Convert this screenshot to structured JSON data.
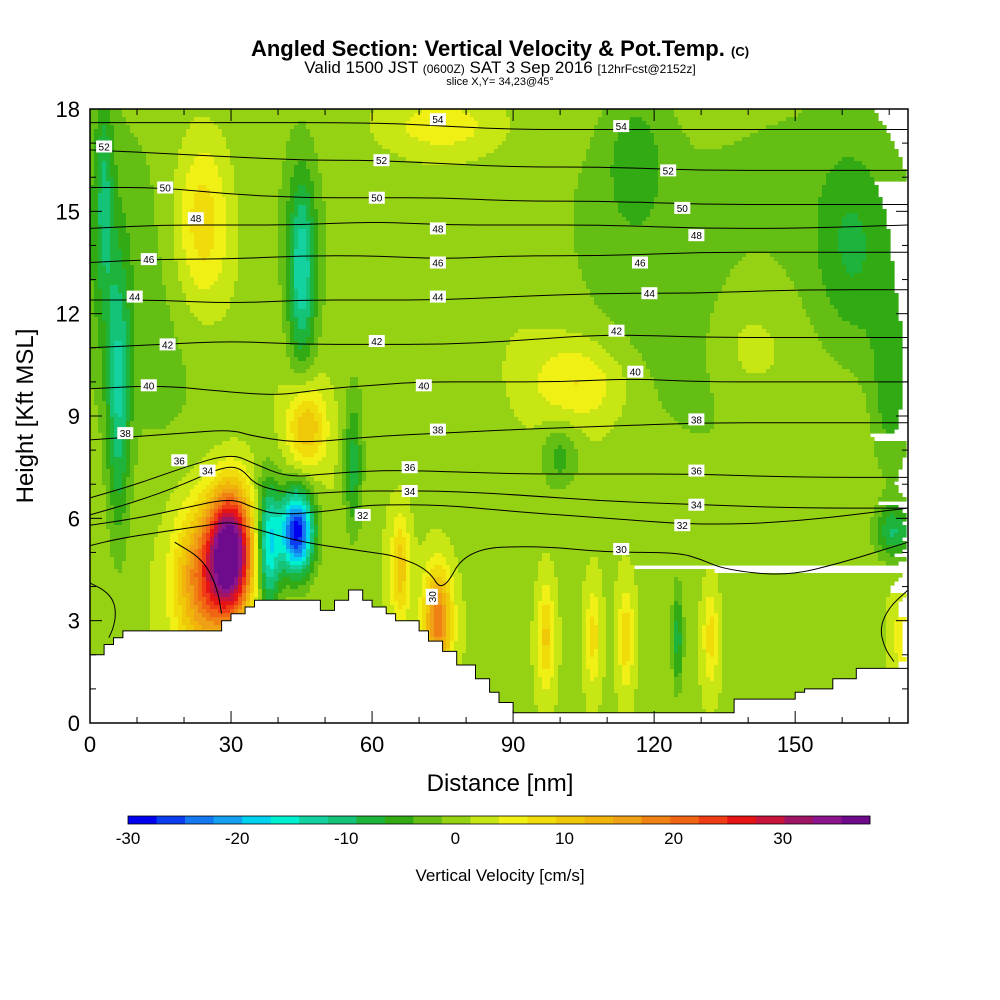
{
  "title": {
    "main": "Angled Section: Vertical Velocity & Pot.Temp.",
    "unit": "(C)",
    "valid_prefix": "Valid 1500 JST",
    "valid_utc": "(0600Z)",
    "valid_date": "SAT 3 Sep 2016",
    "forecast": "[12hrFcst@2152z]",
    "slice": "slice X,Y= 34,23@45°"
  },
  "chart_data": {
    "type": "heatmap",
    "xlabel": "Distance [nm]",
    "ylabel": "Height [Kft MSL]",
    "xlim": [
      0,
      174
    ],
    "ylim": [
      0,
      18
    ],
    "x_ticks": [
      "0",
      "30",
      "60",
      "90",
      "120",
      "150"
    ],
    "y_ticks": [
      "0",
      "3",
      "6",
      "9",
      "12",
      "15",
      "18"
    ],
    "colorbar": {
      "label": "Vertical Velocity [cm/s]",
      "ticks": [
        "-30",
        "-20",
        "-10",
        "0",
        "10",
        "20",
        "30"
      ],
      "range": [
        -30,
        38
      ],
      "colors": [
        "#0000f0",
        "#0a3cf0",
        "#1478f0",
        "#14a0f0",
        "#00d2f0",
        "#00f0d2",
        "#14d2a0",
        "#14c378",
        "#1eb43c",
        "#32aa14",
        "#64be14",
        "#96d214",
        "#c8e614",
        "#f0f014",
        "#f0dc0a",
        "#f0c80a",
        "#f0b40a",
        "#f0a014",
        "#f08214",
        "#f06414",
        "#f03c14",
        "#e61414",
        "#c8143c",
        "#a01464",
        "#8c148c",
        "#6e0a8c"
      ]
    },
    "terrain_profile": {
      "x": [
        0,
        3,
        5,
        7,
        25,
        28,
        30,
        33,
        35,
        45,
        49,
        52,
        55,
        58,
        60,
        63,
        65,
        70,
        72,
        75,
        78,
        82,
        85,
        87,
        90,
        128,
        137,
        150,
        152,
        158,
        163,
        174
      ],
      "top": [
        2.0,
        2.3,
        2.5,
        2.7,
        2.7,
        3.0,
        3.2,
        3.4,
        3.6,
        3.6,
        3.3,
        3.6,
        3.9,
        3.6,
        3.4,
        3.2,
        3.0,
        2.7,
        2.4,
        2.1,
        1.7,
        1.3,
        0.9,
        0.6,
        0.3,
        0.3,
        0.7,
        0.9,
        1.0,
        1.3,
        1.6,
        1.7
      ]
    },
    "updrafts": [
      {
        "x": 30,
        "y": 5.0,
        "sx": 4.5,
        "sy": 1.8,
        "value": 38
      },
      {
        "x": 24,
        "y": 4.2,
        "sx": 6,
        "sy": 2.2,
        "value": 18
      },
      {
        "x": 74,
        "y": 3.0,
        "sx": 3,
        "sy": 1.5,
        "value": 18
      },
      {
        "x": 66,
        "y": 4.5,
        "sx": 2,
        "sy": 1.5,
        "value": 10
      },
      {
        "x": 46,
        "y": 8.7,
        "sx": 4,
        "sy": 1.2,
        "value": 11
      },
      {
        "x": 104,
        "y": 10.0,
        "sx": 10,
        "sy": 1.2,
        "value": 6
      },
      {
        "x": 24,
        "y": 14.7,
        "sx": 6,
        "sy": 2.5,
        "value": 9
      },
      {
        "x": 75,
        "y": 17.5,
        "sx": 12,
        "sy": 0.8,
        "value": 5
      },
      {
        "x": 97,
        "y": 2.5,
        "sx": 1.8,
        "sy": 1.5,
        "value": 9
      },
      {
        "x": 107,
        "y": 2.5,
        "sx": 1.6,
        "sy": 1.4,
        "value": 7
      },
      {
        "x": 114,
        "y": 2.5,
        "sx": 1.6,
        "sy": 1.4,
        "value": 8
      },
      {
        "x": 132,
        "y": 2.5,
        "sx": 1.6,
        "sy": 1.4,
        "value": 7
      },
      {
        "x": 140,
        "y": 11.0,
        "sx": 8,
        "sy": 1.5,
        "value": 3
      },
      {
        "x": 174,
        "y": 2.5,
        "sx": 3,
        "sy": 1.4,
        "value": 7
      }
    ],
    "downdrafts": [
      {
        "x": 44,
        "y": 5.6,
        "sx": 3.5,
        "sy": 1.2,
        "value": -30
      },
      {
        "x": 38,
        "y": 5.2,
        "sx": 2.5,
        "sy": 1.8,
        "value": -18
      },
      {
        "x": 45,
        "y": 13.2,
        "sx": 3,
        "sy": 2.8,
        "value": -14
      },
      {
        "x": 6,
        "y": 9.5,
        "sx": 2.5,
        "sy": 4,
        "value": -11
      },
      {
        "x": 3,
        "y": 15.5,
        "sx": 2,
        "sy": 3,
        "value": -8
      },
      {
        "x": 56,
        "y": 7.5,
        "sx": 2,
        "sy": 2,
        "value": -9
      },
      {
        "x": 125,
        "y": 2.5,
        "sx": 1.2,
        "sy": 1.5,
        "value": -9
      },
      {
        "x": 171,
        "y": 5.6,
        "sx": 4,
        "sy": 0.8,
        "value": -10
      },
      {
        "x": 162,
        "y": 14.0,
        "sx": 8,
        "sy": 3,
        "value": -5
      },
      {
        "x": 100,
        "y": 7.8,
        "sx": 4,
        "sy": 1.0,
        "value": -6
      },
      {
        "x": 170,
        "y": 9.5,
        "sx": 4,
        "sy": 2.5,
        "value": -5
      },
      {
        "x": 116,
        "y": 16.5,
        "sx": 6,
        "sy": 1.8,
        "value": -5
      }
    ],
    "isentropes": [
      {
        "label": "30",
        "pts": [
          [
            0,
            5.2
          ],
          [
            6,
            5.4
          ],
          [
            15,
            5.6
          ],
          [
            25,
            5.8
          ],
          [
            30,
            5.9
          ],
          [
            35,
            5.7
          ],
          [
            45,
            5.3
          ],
          [
            55,
            5.1
          ],
          [
            60,
            5.0
          ],
          [
            65,
            4.9
          ],
          [
            72,
            4.5
          ],
          [
            75,
            3.8
          ],
          [
            80,
            5.1
          ],
          [
            95,
            5.2
          ],
          [
            110,
            5.0
          ],
          [
            125,
            5.0
          ],
          [
            130,
            4.8
          ],
          [
            135,
            4.5
          ],
          [
            148,
            4.3
          ],
          [
            160,
            4.7
          ],
          [
            174,
            5.3
          ]
        ],
        "labels": [
          [
            72.7,
            3.7
          ],
          [
            113,
            5.1
          ]
        ]
      },
      {
        "label": "32",
        "pts": [
          [
            0,
            5.8
          ],
          [
            10,
            6.0
          ],
          [
            20,
            6.3
          ],
          [
            30,
            6.6
          ],
          [
            35,
            6.3
          ],
          [
            40,
            6.1
          ],
          [
            50,
            6.2
          ],
          [
            55,
            6.3
          ],
          [
            60,
            6.4
          ],
          [
            75,
            6.4
          ],
          [
            90,
            6.2
          ],
          [
            110,
            6.0
          ],
          [
            130,
            5.8
          ],
          [
            150,
            5.9
          ],
          [
            174,
            6.3
          ]
        ],
        "labels": [
          [
            58,
            6.1
          ],
          [
            126,
            5.8
          ]
        ]
      },
      {
        "label": "34",
        "pts": [
          [
            0,
            6.1
          ],
          [
            10,
            6.5
          ],
          [
            20,
            7.0
          ],
          [
            28,
            7.5
          ],
          [
            32,
            7.5
          ],
          [
            35,
            7.0
          ],
          [
            40,
            6.8
          ],
          [
            45,
            6.7
          ],
          [
            55,
            6.8
          ],
          [
            65,
            6.8
          ],
          [
            75,
            6.8
          ],
          [
            90,
            6.7
          ],
          [
            110,
            6.5
          ],
          [
            130,
            6.4
          ],
          [
            150,
            6.3
          ],
          [
            174,
            6.3
          ]
        ],
        "labels": [
          [
            25,
            7.4
          ],
          [
            68,
            6.8
          ],
          [
            129,
            6.4
          ]
        ]
      },
      {
        "label": "36",
        "pts": [
          [
            0,
            6.6
          ],
          [
            10,
            7.0
          ],
          [
            20,
            7.5
          ],
          [
            30,
            7.9
          ],
          [
            35,
            7.6
          ],
          [
            42,
            7.2
          ],
          [
            50,
            7.3
          ],
          [
            60,
            7.4
          ],
          [
            70,
            7.4
          ],
          [
            90,
            7.3
          ],
          [
            110,
            7.3
          ],
          [
            130,
            7.3
          ],
          [
            150,
            7.2
          ],
          [
            174,
            7.2
          ]
        ],
        "labels": [
          [
            19,
            7.7
          ],
          [
            68,
            7.5
          ],
          [
            129,
            7.4
          ]
        ]
      },
      {
        "label": "38",
        "pts": [
          [
            0,
            8.3
          ],
          [
            10,
            8.4
          ],
          [
            20,
            8.5
          ],
          [
            30,
            8.6
          ],
          [
            35,
            8.4
          ],
          [
            45,
            8.2
          ],
          [
            60,
            8.4
          ],
          [
            75,
            8.5
          ],
          [
            90,
            8.6
          ],
          [
            110,
            8.7
          ],
          [
            130,
            8.8
          ],
          [
            150,
            8.8
          ],
          [
            174,
            8.8
          ]
        ],
        "labels": [
          [
            7.5,
            8.5
          ],
          [
            74,
            8.6
          ],
          [
            129,
            8.9
          ]
        ]
      },
      {
        "label": "40",
        "pts": [
          [
            0,
            9.8
          ],
          [
            15,
            9.9
          ],
          [
            30,
            9.7
          ],
          [
            40,
            9.6
          ],
          [
            50,
            9.8
          ],
          [
            60,
            9.9
          ],
          [
            70,
            10.0
          ],
          [
            85,
            10.0
          ],
          [
            100,
            10.0
          ],
          [
            115,
            10.1
          ],
          [
            130,
            10.0
          ],
          [
            150,
            10.0
          ],
          [
            174,
            10.0
          ]
        ],
        "labels": [
          [
            12.5,
            9.9
          ],
          [
            71,
            9.9
          ],
          [
            116,
            10.3
          ]
        ]
      },
      {
        "label": "42",
        "pts": [
          [
            0,
            11.0
          ],
          [
            15,
            11.1
          ],
          [
            30,
            11.2
          ],
          [
            45,
            11.1
          ],
          [
            60,
            11.1
          ],
          [
            75,
            11.1
          ],
          [
            90,
            11.2
          ],
          [
            110,
            11.4
          ],
          [
            130,
            11.3
          ],
          [
            150,
            11.3
          ],
          [
            174,
            11.3
          ]
        ],
        "labels": [
          [
            16.5,
            11.1
          ],
          [
            61,
            11.2
          ],
          [
            112,
            11.5
          ]
        ]
      },
      {
        "label": "44",
        "pts": [
          [
            0,
            12.4
          ],
          [
            15,
            12.4
          ],
          [
            30,
            12.3
          ],
          [
            45,
            12.4
          ],
          [
            60,
            12.4
          ],
          [
            75,
            12.4
          ],
          [
            90,
            12.5
          ],
          [
            110,
            12.6
          ],
          [
            130,
            12.6
          ],
          [
            150,
            12.7
          ],
          [
            174,
            12.7
          ]
        ],
        "labels": [
          [
            9.5,
            12.5
          ],
          [
            74,
            12.5
          ],
          [
            119,
            12.6
          ]
        ]
      },
      {
        "label": "46",
        "pts": [
          [
            0,
            13.5
          ],
          [
            15,
            13.6
          ],
          [
            30,
            13.6
          ],
          [
            45,
            13.7
          ],
          [
            60,
            13.7
          ],
          [
            75,
            13.6
          ],
          [
            90,
            13.7
          ],
          [
            110,
            13.7
          ],
          [
            130,
            13.8
          ],
          [
            150,
            13.8
          ],
          [
            174,
            13.8
          ]
        ],
        "labels": [
          [
            12.5,
            13.6
          ],
          [
            74,
            13.5
          ],
          [
            117,
            13.5
          ]
        ]
      },
      {
        "label": "48",
        "pts": [
          [
            0,
            14.5
          ],
          [
            15,
            14.6
          ],
          [
            30,
            14.6
          ],
          [
            45,
            14.6
          ],
          [
            60,
            14.7
          ],
          [
            75,
            14.6
          ],
          [
            90,
            14.6
          ],
          [
            110,
            14.6
          ],
          [
            130,
            14.5
          ],
          [
            150,
            14.5
          ],
          [
            174,
            14.6
          ]
        ],
        "labels": [
          [
            22.5,
            14.8
          ],
          [
            74,
            14.5
          ],
          [
            129,
            14.3
          ]
        ]
      },
      {
        "label": "50",
        "pts": [
          [
            0,
            15.7
          ],
          [
            15,
            15.7
          ],
          [
            30,
            15.5
          ],
          [
            45,
            15.4
          ],
          [
            60,
            15.4
          ],
          [
            75,
            15.4
          ],
          [
            90,
            15.3
          ],
          [
            110,
            15.3
          ],
          [
            130,
            15.2
          ],
          [
            150,
            15.2
          ],
          [
            174,
            15.2
          ]
        ],
        "labels": [
          [
            16,
            15.7
          ],
          [
            61,
            15.4
          ],
          [
            126,
            15.1
          ]
        ]
      },
      {
        "label": "52",
        "pts": [
          [
            0,
            16.8
          ],
          [
            15,
            16.7
          ],
          [
            30,
            16.6
          ],
          [
            45,
            16.5
          ],
          [
            60,
            16.5
          ],
          [
            75,
            16.4
          ],
          [
            90,
            16.3
          ],
          [
            110,
            16.3
          ],
          [
            130,
            16.2
          ],
          [
            150,
            16.2
          ],
          [
            174,
            16.2
          ]
        ],
        "labels": [
          [
            3,
            16.9
          ],
          [
            62,
            16.5
          ],
          [
            123,
            16.2
          ]
        ]
      },
      {
        "label": "54",
        "pts": [
          [
            0,
            17.6
          ],
          [
            30,
            17.6
          ],
          [
            60,
            17.6
          ],
          [
            75,
            17.5
          ],
          [
            90,
            17.4
          ],
          [
            110,
            17.4
          ],
          [
            130,
            17.4
          ],
          [
            150,
            17.4
          ],
          [
            174,
            17.4
          ]
        ],
        "labels": [
          [
            74,
            17.7
          ],
          [
            113,
            17.5
          ]
        ]
      }
    ],
    "extra_contours": [
      {
        "value": 30,
        "pts": [
          [
            0,
            4.1
          ],
          [
            3,
            3.9
          ],
          [
            5,
            3.6
          ],
          [
            5.5,
            3.2
          ],
          [
            5,
            2.8
          ],
          [
            4,
            2.5
          ]
        ]
      },
      {
        "value": 30,
        "pts": [
          [
            18,
            5.3
          ],
          [
            24,
            4.8
          ],
          [
            27,
            4.0
          ],
          [
            28,
            3.2
          ]
        ]
      },
      {
        "value": 30,
        "pts": [
          [
            174,
            3.9
          ],
          [
            170,
            3.4
          ],
          [
            168,
            2.8
          ],
          [
            169,
            2.2
          ],
          [
            171,
            1.8
          ]
        ]
      }
    ]
  }
}
